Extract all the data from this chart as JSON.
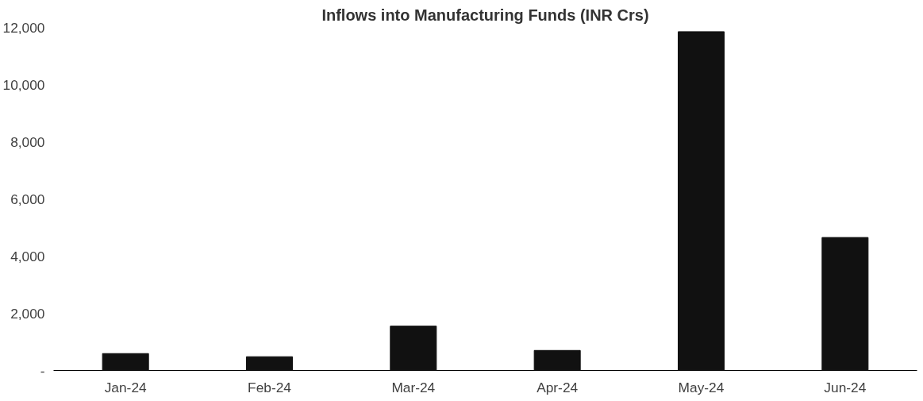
{
  "chart_data": {
    "type": "bar",
    "title": "Inflows into Manufacturing Funds (INR Crs)",
    "categories": [
      "Jan-24",
      "Feb-24",
      "Mar-24",
      "Apr-24",
      "May-24",
      "Jun-24"
    ],
    "values": [
      590,
      480,
      1550,
      700,
      11850,
      4650
    ],
    "color": "#111111",
    "ylim": [
      0,
      12000
    ],
    "yticks": [
      {
        "value": 0,
        "label": "-"
      },
      {
        "value": 2000,
        "label": "2,000"
      },
      {
        "value": 4000,
        "label": "4,000"
      },
      {
        "value": 6000,
        "label": "6,000"
      },
      {
        "value": 8000,
        "label": "8,000"
      },
      {
        "value": 10000,
        "label": "10,000"
      },
      {
        "value": 12000,
        "label": "12,000"
      }
    ],
    "grid": false
  }
}
